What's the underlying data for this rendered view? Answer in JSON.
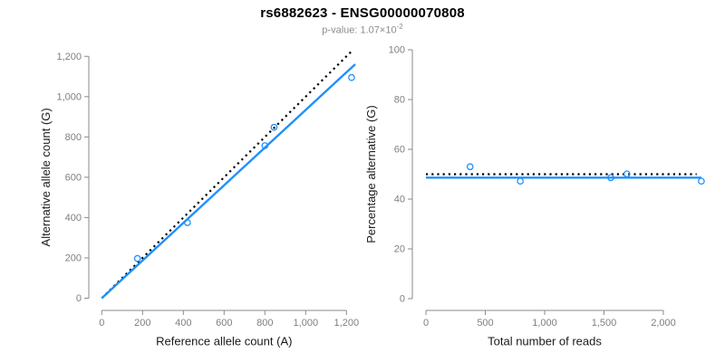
{
  "header": {
    "title": "rs6882623 - ENSG00000070808",
    "p_value_prefix": "p-value: 1.07",
    "p_value_base": "×10",
    "p_value_exponent": "-2"
  },
  "colors": {
    "accent_blue": "#1E90FF",
    "line_black": "#000000",
    "axis_gray": "#8a8a8a",
    "tick_label_gray": "#7f7f7f",
    "axis_title_color": "#1a1a1a"
  },
  "chart_data": [
    {
      "type": "scatter",
      "name": "allele-counts-panel",
      "xlabel": "Reference allele count (A)",
      "ylabel": "Alternative allele count (G)",
      "xlim": [
        0,
        1200
      ],
      "ylim": [
        0,
        1200
      ],
      "grid": false,
      "marker": "open-circle",
      "point_color": "#1E90FF",
      "xticks": [
        0,
        200,
        400,
        600,
        800,
        1000,
        1200
      ],
      "xtick_labels": [
        "0",
        "200",
        "400",
        "600",
        "800",
        "1,000",
        "1,200"
      ],
      "yticks": [
        0,
        200,
        400,
        600,
        800,
        1000,
        1200
      ],
      "ytick_labels": [
        "0",
        "200",
        "400",
        "600",
        "800",
        "1,000",
        "1,200"
      ],
      "points": [
        [
          175,
          197
        ],
        [
          420,
          375
        ],
        [
          800,
          757
        ],
        [
          845,
          848
        ],
        [
          1225,
          1095
        ]
      ],
      "lines": [
        {
          "name": "identity-line",
          "slope": 1,
          "intercept": 0,
          "x_start": 0,
          "x_end": 1228,
          "style": "dotted",
          "color": "#000000"
        },
        {
          "name": "fit-line",
          "slope": 0.934,
          "intercept": 0,
          "x_start": 0,
          "x_end": 1243,
          "style": "solid",
          "color": "#1E90FF"
        }
      ]
    },
    {
      "type": "scatter",
      "name": "percentage-panel",
      "xlabel": "Total number of reads",
      "ylabel": "Percentage alternative (G)",
      "xlim": [
        0,
        2000
      ],
      "ylim": [
        0,
        100
      ],
      "grid": false,
      "marker": "open-circle",
      "point_color": "#1E90FF",
      "xticks": [
        0,
        500,
        1000,
        1500,
        2000
      ],
      "xtick_labels": [
        "0",
        "500",
        "1,000",
        "1,500",
        "2,000"
      ],
      "yticks": [
        0,
        20,
        40,
        60,
        80,
        100
      ],
      "ytick_labels": [
        "0",
        "20",
        "40",
        "60",
        "80",
        "100"
      ],
      "points": [
        [
          372,
          53.0
        ],
        [
          795,
          47.2
        ],
        [
          1557,
          48.6
        ],
        [
          1693,
          50.1
        ],
        [
          2320,
          47.2
        ]
      ],
      "lines": [
        {
          "name": "null-50-percent-line",
          "slope": 0,
          "intercept": 50,
          "x_start": 0,
          "x_end": 2280,
          "style": "dotted",
          "color": "#000000"
        },
        {
          "name": "fit-line",
          "slope": 0,
          "intercept": 48.6,
          "x_start": 0,
          "x_end": 2320,
          "style": "solid",
          "color": "#1E90FF"
        }
      ]
    }
  ]
}
